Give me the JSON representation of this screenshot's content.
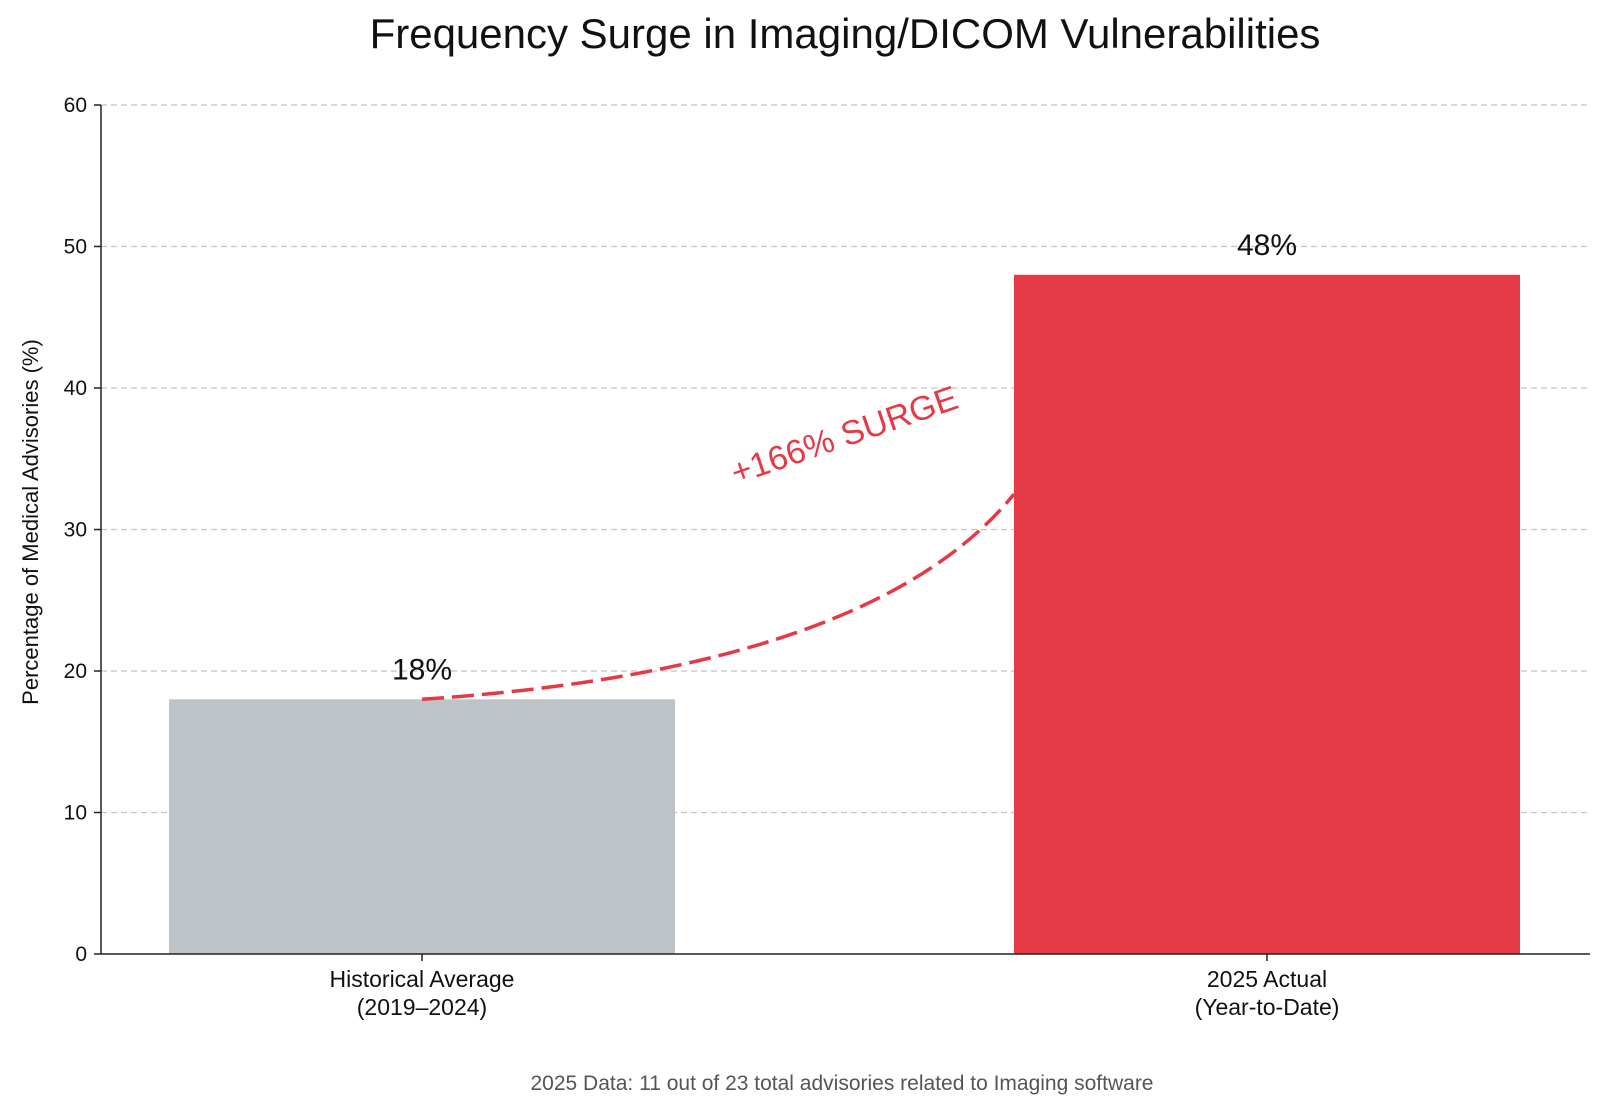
{
  "chart_data": {
    "type": "bar",
    "title": "Frequency Surge in Imaging/DICOM Vulnerabilities",
    "xlabel": "",
    "ylabel": "Percentage of Medical Advisories (%)",
    "ylim": [
      0,
      60
    ],
    "yticks": [
      0,
      10,
      20,
      30,
      40,
      50,
      60
    ],
    "grid": true,
    "categories": [
      {
        "line1": "Historical Average",
        "line2": "(2019–2024)"
      },
      {
        "line1": "2025 Actual",
        "line2": "(Year-to-Date)"
      }
    ],
    "values": [
      18,
      48
    ],
    "data_labels": [
      "18%",
      "48%"
    ],
    "bar_colors": [
      "#bdc3c7",
      "#e63946"
    ],
    "annotation": {
      "text": "+166% SURGE",
      "color": "#e63946",
      "style": "dashed curved arrow from bar 1 top to bar 2"
    },
    "footnote": "2025 Data: 11 out of 23 total advisories related to Imaging software"
  }
}
